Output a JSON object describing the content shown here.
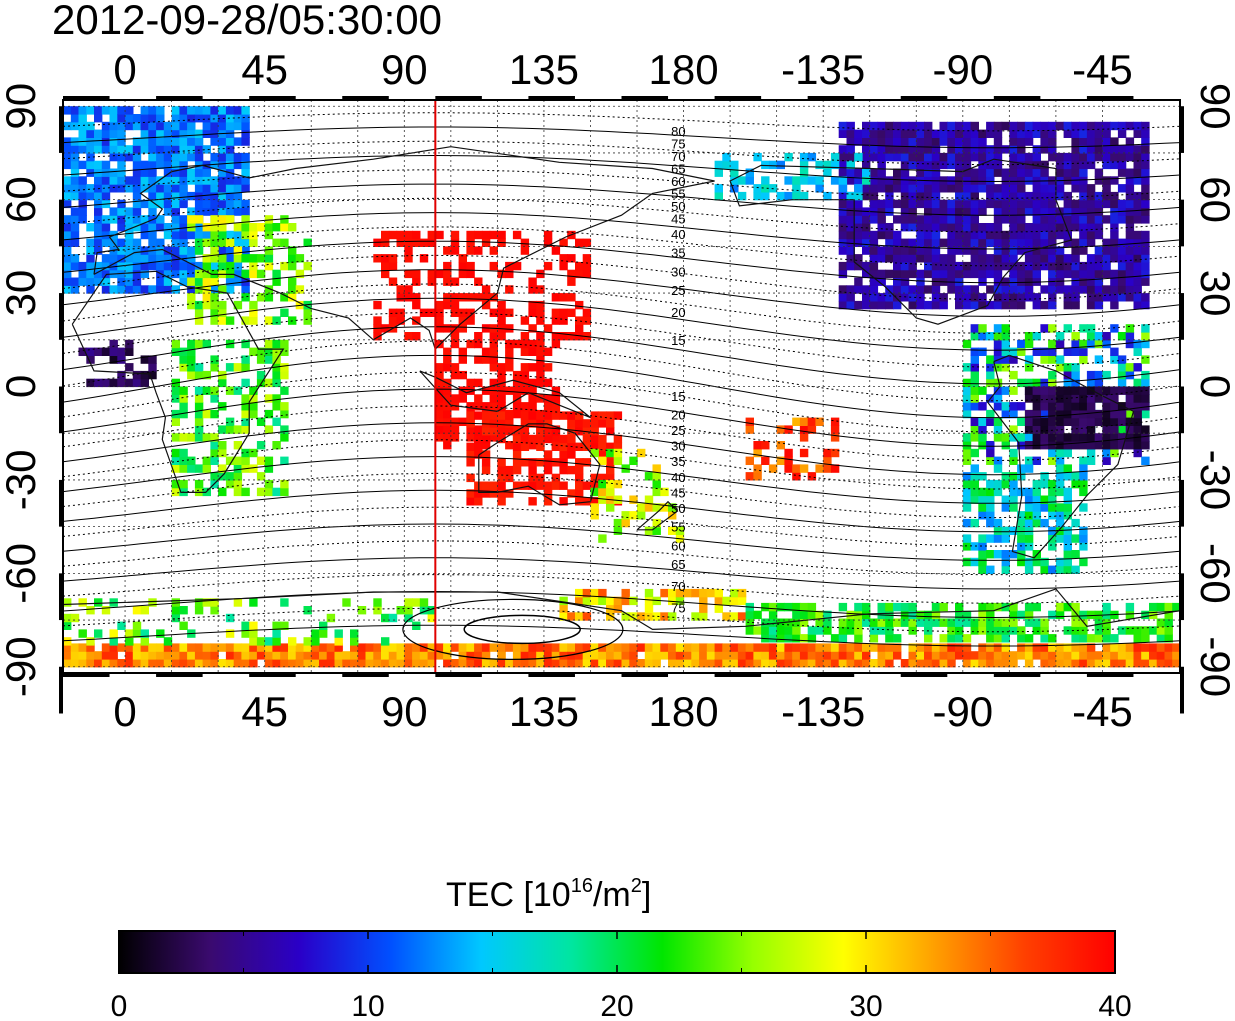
{
  "title": "2012-09-28/05:30:00",
  "map": {
    "x_ticks_top": [
      "0",
      "45",
      "90",
      "135",
      "180",
      "-135",
      "-90",
      "-45"
    ],
    "x_ticks_bottom": [
      "0",
      "45",
      "90",
      "135",
      "180",
      "-135",
      "-90",
      "-45"
    ],
    "y_ticks_left": [
      "90",
      "60",
      "30",
      "0",
      "-30",
      "-60",
      "-90"
    ],
    "y_ticks_right": [
      "90",
      "60",
      "30",
      "0",
      "-30",
      "-60",
      "-90"
    ],
    "lon_values": [
      0,
      45,
      90,
      135,
      180,
      225,
      270,
      315
    ],
    "lat_values": [
      90,
      60,
      30,
      0,
      -30,
      -60,
      -90
    ],
    "lon_range": [
      -20,
      340
    ],
    "lat_range": [
      -92,
      92
    ],
    "gridlines": true,
    "marker_line_lon": 100,
    "marker_line_color": "#e00000",
    "contour_labels_north": [
      "80",
      "75",
      "70",
      "65",
      "60",
      "55",
      "50",
      "45",
      "40",
      "35",
      "30",
      "25",
      "20",
      "15"
    ],
    "contour_labels_south": [
      "15",
      "20",
      "25",
      "30",
      "35",
      "40",
      "45",
      "50",
      "55",
      "60",
      "65",
      "70",
      "75"
    ],
    "contour_label_lat_north": [
      82,
      78,
      74,
      70,
      66,
      62,
      58,
      54,
      49,
      43,
      37,
      31,
      24,
      15
    ],
    "contour_label_lat_south": [
      -3,
      -9,
      -14,
      -19,
      -24,
      -29,
      -34,
      -39,
      -45,
      -51,
      -57,
      -64,
      -71
    ]
  },
  "colorbar": {
    "label_main": "TEC  [10",
    "label_sup1": "16",
    "label_mid": "/m",
    "label_sup2": "2",
    "label_end": "]",
    "ticks": [
      "0",
      "10",
      "20",
      "30",
      "40"
    ],
    "tick_values": [
      0,
      10,
      20,
      30,
      40
    ],
    "range": [
      0,
      40
    ],
    "stops": [
      "#000000",
      "#3a0a6e",
      "#2a00c8",
      "#0050ff",
      "#00c8ff",
      "#00e6a0",
      "#00e600",
      "#96ff00",
      "#ffff00",
      "#ffa000",
      "#ff4000",
      "#ff0000"
    ]
  },
  "colors": {
    "frame": "#000000",
    "coast": "#111111",
    "grid": "#333333"
  }
}
